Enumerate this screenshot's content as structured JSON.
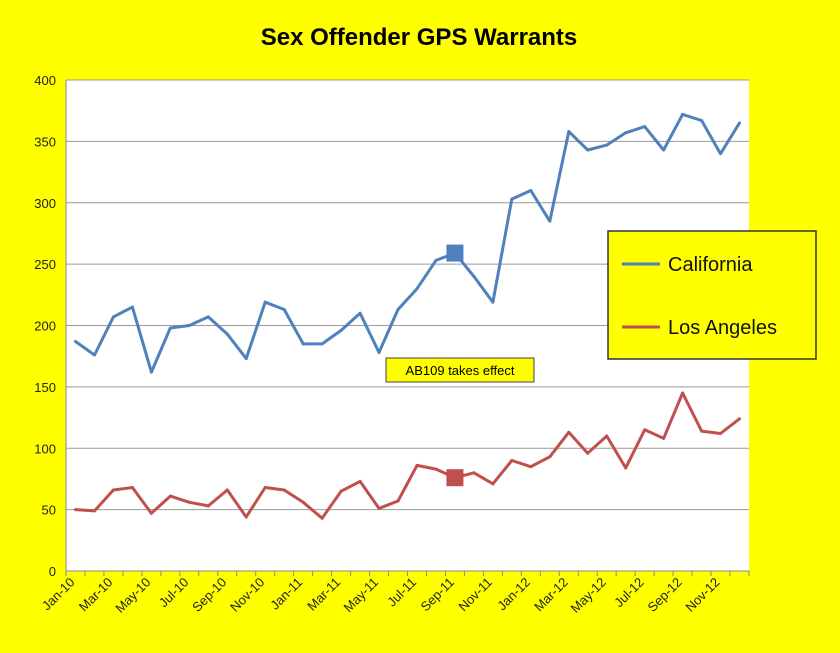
{
  "chart_data": {
    "type": "line",
    "title": "Sex Offender GPS Warrants",
    "xlabel": "",
    "ylabel": "",
    "ylim": [
      0,
      400
    ],
    "yticks": [
      0,
      50,
      100,
      150,
      200,
      250,
      300,
      350,
      400
    ],
    "grid": true,
    "legend_position": "right",
    "x": [
      "Jan-10",
      "Feb-10",
      "Mar-10",
      "Apr-10",
      "May-10",
      "Jun-10",
      "Jul-10",
      "Aug-10",
      "Sep-10",
      "Oct-10",
      "Nov-10",
      "Dec-10",
      "Jan-11",
      "Feb-11",
      "Mar-11",
      "Apr-11",
      "May-11",
      "Jun-11",
      "Jul-11",
      "Aug-11",
      "Sep-11",
      "Oct-11",
      "Nov-11",
      "Dec-11",
      "Jan-12",
      "Feb-12",
      "Mar-12",
      "Apr-12",
      "May-12",
      "Jun-12",
      "Jul-12",
      "Aug-12",
      "Sep-12",
      "Oct-12",
      "Nov-12",
      "Dec-12"
    ],
    "x_tick_labels": [
      "Jan-10",
      "Mar-10",
      "May-10",
      "Jul-10",
      "Sep-10",
      "Nov-10",
      "Jan-11",
      "Mar-11",
      "May-11",
      "Jul-11",
      "Sep-11",
      "Nov-11",
      "Jan-12",
      "Mar-12",
      "May-12",
      "Jul-12",
      "Sep-12",
      "Nov-12"
    ],
    "series": [
      {
        "name": "California",
        "color": "#4f81bd",
        "values": [
          187,
          176,
          207,
          215,
          162,
          198,
          200,
          207,
          193,
          173,
          219,
          213,
          185,
          185,
          196,
          210,
          178,
          213,
          230,
          253,
          259,
          240,
          219,
          303,
          310,
          285,
          358,
          343,
          347,
          357,
          362,
          343,
          372,
          367,
          340,
          365
        ],
        "marker_index": 20
      },
      {
        "name": "Los Angeles",
        "color": "#c0504d",
        "values": [
          50,
          49,
          66,
          68,
          47,
          61,
          56,
          53,
          66,
          44,
          68,
          66,
          56,
          43,
          65,
          73,
          51,
          57,
          86,
          83,
          76,
          80,
          71,
          90,
          85,
          93,
          113,
          96,
          110,
          84,
          115,
          108,
          145,
          114,
          112,
          124
        ],
        "marker_index": 20
      }
    ],
    "annotation": "AB109 takes effect"
  }
}
